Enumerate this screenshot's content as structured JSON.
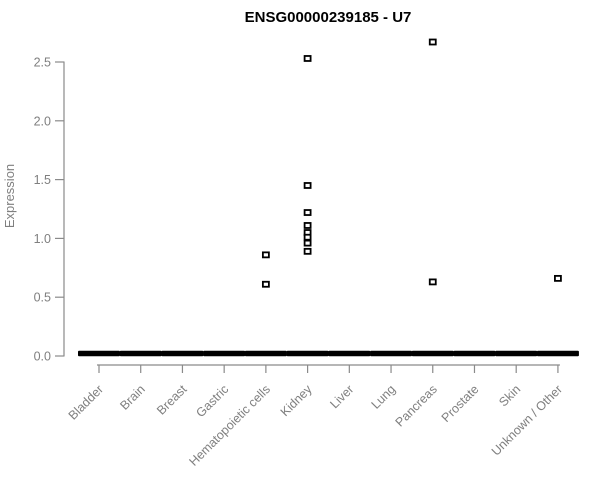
{
  "chart_data": {
    "type": "scatter",
    "title": "ENSG00000239185 - U7",
    "ylabel": "Expression",
    "xlabel": "",
    "categories": [
      "Bladder",
      "Brain",
      "Breast",
      "Gastric",
      "Hematopoietic cells",
      "Kidney",
      "Liver",
      "Lung",
      "Pancreas",
      "Prostate",
      "Skin",
      "Unknown / Other"
    ],
    "ytick_labels": [
      "0.0",
      "0.5",
      "1.0",
      "1.5",
      "2.0",
      "2.5"
    ],
    "ylim": [
      0,
      2.7
    ],
    "grid": false,
    "legend": "none",
    "marker": {
      "shape": "open-square",
      "color": "#000000"
    },
    "zero_dash": {
      "note": "dense overplotted points at expression ~0 form a solid black dash under every category",
      "value": 0.0,
      "categories": [
        "Bladder",
        "Brain",
        "Breast",
        "Gastric",
        "Hematopoietic cells",
        "Kidney",
        "Liver",
        "Lung",
        "Pancreas",
        "Prostate",
        "Skin",
        "Unknown / Other"
      ]
    },
    "nonzero_points": [
      {
        "category": "Hematopoietic cells",
        "value": 0.86
      },
      {
        "category": "Hematopoietic cells",
        "value": 0.61
      },
      {
        "category": "Kidney",
        "value": 2.53
      },
      {
        "category": "Kidney",
        "value": 1.45
      },
      {
        "category": "Kidney",
        "value": 1.22
      },
      {
        "category": "Kidney",
        "value": 1.11
      },
      {
        "category": "Kidney",
        "value": 1.05
      },
      {
        "category": "Kidney",
        "value": 1.01
      },
      {
        "category": "Kidney",
        "value": 0.96
      },
      {
        "category": "Kidney",
        "value": 0.89
      },
      {
        "category": "Pancreas",
        "value": 2.67
      },
      {
        "category": "Pancreas",
        "value": 0.63
      },
      {
        "category": "Unknown / Other",
        "value": 0.66
      }
    ],
    "colors": {
      "background": "#ffffff",
      "title_text": "#000000",
      "axis_text": "#7f7f7f",
      "axis_line": "#8a8a8a",
      "marker": "#000000"
    }
  }
}
